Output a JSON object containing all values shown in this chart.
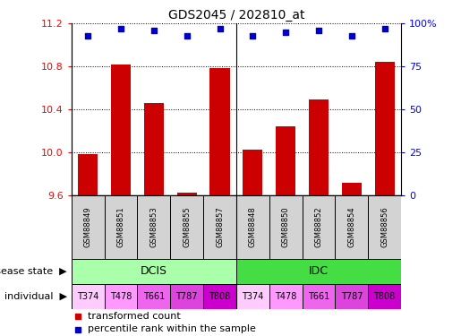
{
  "title": "GDS2045 / 202810_at",
  "samples": [
    "GSM88849",
    "GSM88851",
    "GSM88853",
    "GSM88855",
    "GSM88857",
    "GSM88848",
    "GSM88850",
    "GSM88852",
    "GSM88854",
    "GSM88856"
  ],
  "transformed_counts": [
    9.98,
    10.82,
    10.46,
    9.62,
    10.78,
    10.02,
    10.24,
    10.49,
    9.71,
    10.84
  ],
  "percentile_ranks": [
    93,
    97,
    96,
    93,
    97,
    93,
    95,
    96,
    93,
    97
  ],
  "ylim_left": [
    9.6,
    11.2
  ],
  "ylim_right": [
    0,
    100
  ],
  "yticks_left": [
    9.6,
    10.0,
    10.4,
    10.8,
    11.2
  ],
  "yticks_right": [
    0,
    25,
    50,
    75,
    100
  ],
  "ytick_labels_right": [
    "0",
    "25",
    "50",
    "75",
    "100%"
  ],
  "bar_color": "#cc0000",
  "scatter_color": "#0000cc",
  "disease_state_groups": [
    {
      "label": "DCIS",
      "start": 0,
      "end": 5,
      "color": "#aaffaa"
    },
    {
      "label": "IDC",
      "start": 5,
      "end": 10,
      "color": "#44dd44"
    }
  ],
  "individuals": [
    "T374",
    "T478",
    "T661",
    "T787",
    "T808",
    "T374",
    "T478",
    "T661",
    "T787",
    "T808"
  ],
  "ind_colors": [
    "#ffccff",
    "#ff99ff",
    "#ee66ee",
    "#dd44dd",
    "#cc00cc",
    "#ffccff",
    "#ff99ff",
    "#ee66ee",
    "#dd44dd",
    "#cc00cc"
  ],
  "sample_box_color": "#d3d3d3",
  "baseline": 9.6,
  "bar_width": 0.6
}
